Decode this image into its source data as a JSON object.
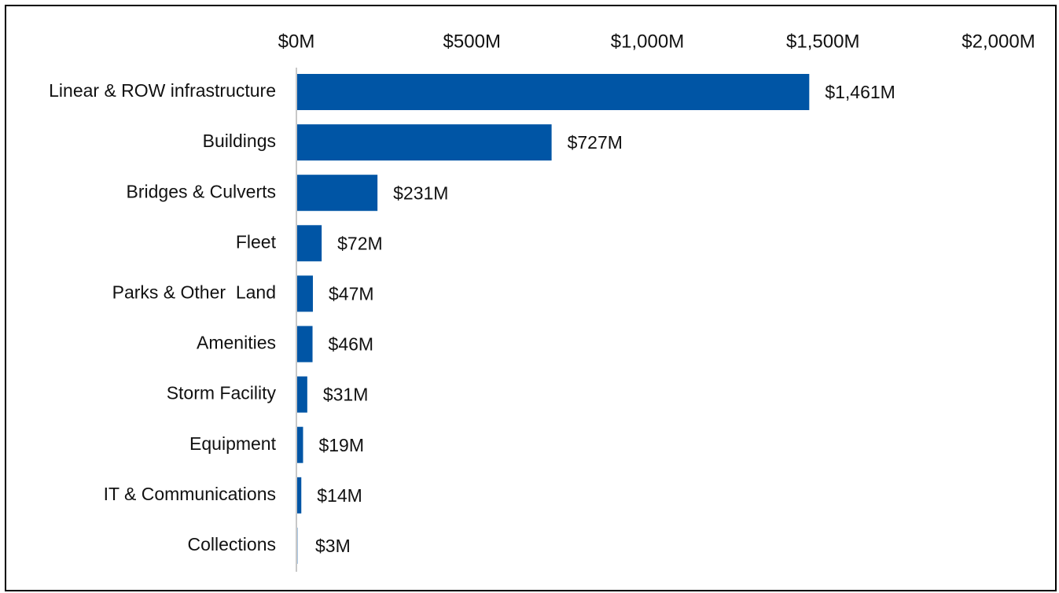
{
  "chart_data": {
    "type": "bar",
    "orientation": "horizontal",
    "title": "",
    "xlabel": "",
    "ylabel": "",
    "categories": [
      "Linear & ROW infrastructure",
      "Buildings",
      "Bridges & Culverts",
      "Fleet",
      "Parks & Other  Land",
      "Amenities",
      "Storm Facility",
      "Equipment",
      "IT & Communications",
      "Collections"
    ],
    "values": [
      1461,
      727,
      231,
      72,
      47,
      46,
      31,
      19,
      14,
      3
    ],
    "data_labels": [
      "$1,461M",
      "$727M",
      "$231M",
      "$72M",
      "$47M",
      "$46M",
      "$31M",
      "$19M",
      "$14M",
      "$3M"
    ],
    "unit": "$M",
    "xlim": [
      0,
      2000
    ],
    "xticks": [
      0,
      500,
      1000,
      1500,
      2000
    ],
    "xtick_labels": [
      "$0M",
      "$500M",
      "$1,000M",
      "$1,500M",
      "$2,000M"
    ],
    "x_axis_position": "top",
    "grid": false,
    "legend": "none",
    "bar_color": "#0055A5",
    "axis_line_color": "#C8C8C8"
  }
}
